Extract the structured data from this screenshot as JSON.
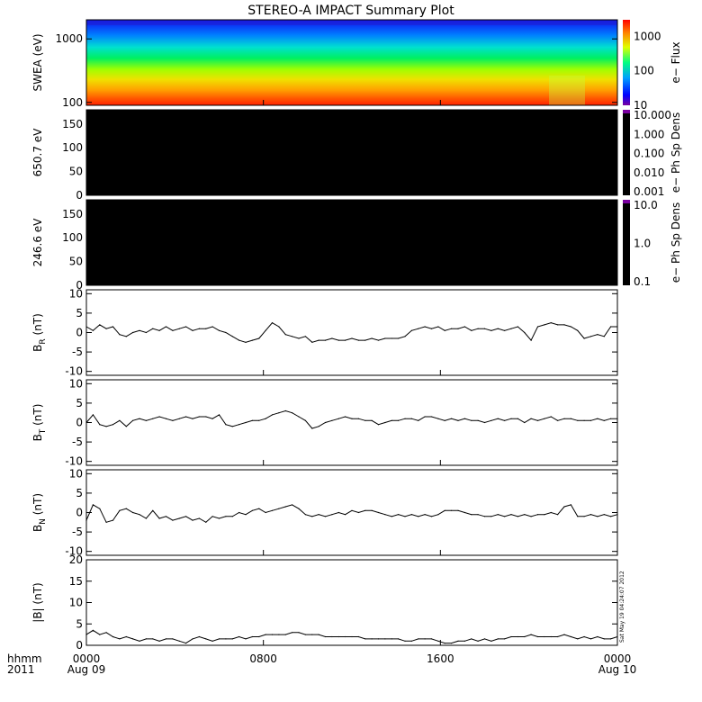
{
  "chart_data": {
    "title": "STEREO-A IMPACT Summary Plot",
    "x_axis": {
      "row1_label": "hhmm",
      "row2_label": "2011",
      "ticks": [
        {
          "time": "0000",
          "date": "Aug 09",
          "hour": 0
        },
        {
          "time": "0800",
          "date": "",
          "hour": 8
        },
        {
          "time": "1600",
          "date": "",
          "hour": 16
        },
        {
          "time": "0000",
          "date": "Aug 10",
          "hour": 24
        }
      ],
      "range_hours": [
        0,
        24
      ]
    },
    "panels": [
      {
        "id": "swea",
        "type": "heatmap",
        "ylabel": "SWEA (eV)",
        "yscale": "log",
        "ylim": [
          90,
          2000
        ],
        "yticks": [
          "100",
          "1000"
        ],
        "colorbar": {
          "label": "e− Flux",
          "scale": "log",
          "ticks": [
            "10",
            "100",
            "1000"
          ],
          "range": [
            10,
            3000
          ]
        }
      },
      {
        "id": "pad650",
        "type": "heatmap",
        "ylabel": "650.7 eV",
        "ylim": [
          0,
          180
        ],
        "yticks": [
          "0",
          "50",
          "100",
          "150"
        ],
        "fill": "#000000",
        "colorbar": {
          "label": "e− Ph Sp Dens",
          "scale": "log",
          "ticks": [
            "10.000",
            "1.000",
            "0.100",
            "0.010",
            "0.001"
          ]
        }
      },
      {
        "id": "pad246",
        "type": "heatmap",
        "ylabel": "246.6 eV",
        "ylim": [
          0,
          180
        ],
        "yticks": [
          "0",
          "50",
          "100",
          "150"
        ],
        "fill": "#000000",
        "colorbar": {
          "label": "e− Ph Sp Dens",
          "scale": "log",
          "ticks": [
            "10.0",
            "1.0",
            "0.1"
          ]
        }
      },
      {
        "id": "br",
        "type": "line",
        "ylabel": "B",
        "ylabel_sub": "R",
        "ylabel_unit": " (nT)",
        "ylim": [
          -11,
          11
        ],
        "yticks": [
          "10",
          "5",
          "0",
          "-5",
          "-10"
        ],
        "x": [
          0,
          0.3,
          0.6,
          0.9,
          1.2,
          1.5,
          1.8,
          2.1,
          2.4,
          2.7,
          3.0,
          3.3,
          3.6,
          3.9,
          4.2,
          4.5,
          4.8,
          5.1,
          5.4,
          5.7,
          6.0,
          6.3,
          6.6,
          6.9,
          7.2,
          7.5,
          7.8,
          8.1,
          8.4,
          8.7,
          9.0,
          9.3,
          9.6,
          9.9,
          10.2,
          10.5,
          10.8,
          11.1,
          11.4,
          11.7,
          12.0,
          12.3,
          12.6,
          12.9,
          13.2,
          13.5,
          13.8,
          14.1,
          14.4,
          14.7,
          15.0,
          15.3,
          15.6,
          15.9,
          16.2,
          16.5,
          16.8,
          17.1,
          17.4,
          17.7,
          18.0,
          18.3,
          18.6,
          18.9,
          19.2,
          19.5,
          19.8,
          20.1,
          20.4,
          20.7,
          21.0,
          21.3,
          21.6,
          21.9,
          22.2,
          22.5,
          22.8,
          23.1,
          23.4,
          23.7,
          24.0
        ],
        "y": [
          1.5,
          0.5,
          2.0,
          1.0,
          1.5,
          -0.5,
          -1.0,
          0.0,
          0.5,
          0.0,
          1.0,
          0.5,
          1.5,
          0.5,
          1.0,
          1.5,
          0.5,
          1.0,
          1.0,
          1.5,
          0.5,
          0.0,
          -1.0,
          -2.0,
          -2.5,
          -2.0,
          -1.5,
          0.5,
          2.5,
          1.5,
          -0.5,
          -1.0,
          -1.5,
          -1.0,
          -2.5,
          -2.0,
          -2.0,
          -1.5,
          -2.0,
          -2.0,
          -1.5,
          -2.0,
          -2.0,
          -1.5,
          -2.0,
          -1.5,
          -1.5,
          -1.5,
          -1.0,
          0.5,
          1.0,
          1.5,
          1.0,
          1.5,
          0.5,
          1.0,
          1.0,
          1.5,
          0.5,
          1.0,
          1.0,
          0.5,
          1.0,
          0.5,
          1.0,
          1.5,
          0.0,
          -2.0,
          1.5,
          2.0,
          2.5,
          2.0,
          2.0,
          1.5,
          0.5,
          -1.5,
          -1.0,
          -0.5,
          -1.0,
          1.5,
          1.5
        ]
      },
      {
        "id": "bt",
        "type": "line",
        "ylabel": "B",
        "ylabel_sub": "T",
        "ylabel_unit": " (nT)",
        "ylim": [
          -11,
          11
        ],
        "yticks": [
          "10",
          "5",
          "0",
          "-5",
          "-10"
        ],
        "x": [
          0,
          0.3,
          0.6,
          0.9,
          1.2,
          1.5,
          1.8,
          2.1,
          2.4,
          2.7,
          3.0,
          3.3,
          3.6,
          3.9,
          4.2,
          4.5,
          4.8,
          5.1,
          5.4,
          5.7,
          6.0,
          6.3,
          6.6,
          6.9,
          7.2,
          7.5,
          7.8,
          8.1,
          8.4,
          8.7,
          9.0,
          9.3,
          9.6,
          9.9,
          10.2,
          10.5,
          10.8,
          11.1,
          11.4,
          11.7,
          12.0,
          12.3,
          12.6,
          12.9,
          13.2,
          13.5,
          13.8,
          14.1,
          14.4,
          14.7,
          15.0,
          15.3,
          15.6,
          15.9,
          16.2,
          16.5,
          16.8,
          17.1,
          17.4,
          17.7,
          18.0,
          18.3,
          18.6,
          18.9,
          19.2,
          19.5,
          19.8,
          20.1,
          20.4,
          20.7,
          21.0,
          21.3,
          21.6,
          21.9,
          22.2,
          22.5,
          22.8,
          23.1,
          23.4,
          23.7,
          24.0
        ],
        "y": [
          0.0,
          2.0,
          -0.5,
          -1.0,
          -0.5,
          0.5,
          -1.0,
          0.5,
          1.0,
          0.5,
          1.0,
          1.5,
          1.0,
          0.5,
          1.0,
          1.5,
          1.0,
          1.5,
          1.5,
          1.0,
          2.0,
          -0.5,
          -1.0,
          -0.5,
          0.0,
          0.5,
          0.5,
          1.0,
          2.0,
          2.5,
          3.0,
          2.5,
          1.5,
          0.5,
          -1.5,
          -1.0,
          0.0,
          0.5,
          1.0,
          1.5,
          1.0,
          1.0,
          0.5,
          0.5,
          -0.5,
          0.0,
          0.5,
          0.5,
          1.0,
          1.0,
          0.5,
          1.5,
          1.5,
          1.0,
          0.5,
          1.0,
          0.5,
          1.0,
          0.5,
          0.5,
          0.0,
          0.5,
          1.0,
          0.5,
          1.0,
          1.0,
          0.0,
          1.0,
          0.5,
          1.0,
          1.5,
          0.5,
          1.0,
          1.0,
          0.5,
          0.5,
          0.5,
          1.0,
          0.5,
          1.0,
          1.0
        ]
      },
      {
        "id": "bn",
        "type": "line",
        "ylabel": "B",
        "ylabel_sub": "N",
        "ylabel_unit": " (nT)",
        "ylim": [
          -11,
          11
        ],
        "yticks": [
          "10",
          "5",
          "0",
          "-5",
          "-10"
        ],
        "x": [
          0,
          0.3,
          0.6,
          0.9,
          1.2,
          1.5,
          1.8,
          2.1,
          2.4,
          2.7,
          3.0,
          3.3,
          3.6,
          3.9,
          4.2,
          4.5,
          4.8,
          5.1,
          5.4,
          5.7,
          6.0,
          6.3,
          6.6,
          6.9,
          7.2,
          7.5,
          7.8,
          8.1,
          8.4,
          8.7,
          9.0,
          9.3,
          9.6,
          9.9,
          10.2,
          10.5,
          10.8,
          11.1,
          11.4,
          11.7,
          12.0,
          12.3,
          12.6,
          12.9,
          13.2,
          13.5,
          13.8,
          14.1,
          14.4,
          14.7,
          15.0,
          15.3,
          15.6,
          15.9,
          16.2,
          16.5,
          16.8,
          17.1,
          17.4,
          17.7,
          18.0,
          18.3,
          18.6,
          18.9,
          19.2,
          19.5,
          19.8,
          20.1,
          20.4,
          20.7,
          21.0,
          21.3,
          21.6,
          21.9,
          22.2,
          22.5,
          22.8,
          23.1,
          23.4,
          23.7,
          24.0
        ],
        "y": [
          -2.0,
          2.0,
          1.0,
          -2.5,
          -2.0,
          0.5,
          1.0,
          0.0,
          -0.5,
          -1.5,
          0.5,
          -1.5,
          -1.0,
          -2.0,
          -1.5,
          -1.0,
          -2.0,
          -1.5,
          -2.5,
          -1.0,
          -1.5,
          -1.0,
          -1.0,
          0.0,
          -0.5,
          0.5,
          1.0,
          0.0,
          0.5,
          1.0,
          1.5,
          2.0,
          1.0,
          -0.5,
          -1.0,
          -0.5,
          -1.0,
          -0.5,
          0.0,
          -0.5,
          0.5,
          0.0,
          0.5,
          0.5,
          0.0,
          -0.5,
          -1.0,
          -0.5,
          -1.0,
          -0.5,
          -1.0,
          -0.5,
          -1.0,
          -0.5,
          0.5,
          0.5,
          0.5,
          0.0,
          -0.5,
          -0.5,
          -1.0,
          -1.0,
          -0.5,
          -1.0,
          -0.5,
          -1.0,
          -0.5,
          -1.0,
          -0.5,
          -0.5,
          0.0,
          -0.5,
          1.5,
          2.0,
          -1.0,
          -1.0,
          -0.5,
          -1.0,
          -0.5,
          -1.0,
          -0.5
        ]
      },
      {
        "id": "bmag",
        "type": "line",
        "ylabel": "|B| (nT)",
        "ylim": [
          0,
          20
        ],
        "yticks": [
          "20",
          "15",
          "10",
          "5",
          "0"
        ],
        "x": [
          0,
          0.3,
          0.6,
          0.9,
          1.2,
          1.5,
          1.8,
          2.1,
          2.4,
          2.7,
          3.0,
          3.3,
          3.6,
          3.9,
          4.2,
          4.5,
          4.8,
          5.1,
          5.4,
          5.7,
          6.0,
          6.3,
          6.6,
          6.9,
          7.2,
          7.5,
          7.8,
          8.1,
          8.4,
          8.7,
          9.0,
          9.3,
          9.6,
          9.9,
          10.2,
          10.5,
          10.8,
          11.1,
          11.4,
          11.7,
          12.0,
          12.3,
          12.6,
          12.9,
          13.2,
          13.5,
          13.8,
          14.1,
          14.4,
          14.7,
          15.0,
          15.3,
          15.6,
          15.9,
          16.2,
          16.5,
          16.8,
          17.1,
          17.4,
          17.7,
          18.0,
          18.3,
          18.6,
          18.9,
          19.2,
          19.5,
          19.8,
          20.1,
          20.4,
          20.7,
          21.0,
          21.3,
          21.6,
          21.9,
          22.2,
          22.5,
          22.8,
          23.1,
          23.4,
          23.7,
          24.0
        ],
        "y": [
          2.5,
          3.5,
          2.5,
          3.0,
          2.0,
          1.5,
          2.0,
          1.5,
          1.0,
          1.5,
          1.5,
          1.0,
          1.5,
          1.5,
          1.0,
          0.5,
          1.5,
          2.0,
          1.5,
          1.0,
          1.5,
          1.5,
          1.5,
          2.0,
          1.5,
          2.0,
          2.0,
          2.5,
          2.5,
          2.5,
          2.5,
          3.0,
          3.0,
          2.5,
          2.5,
          2.5,
          2.0,
          2.0,
          2.0,
          2.0,
          2.0,
          2.0,
          1.5,
          1.5,
          1.5,
          1.5,
          1.5,
          1.5,
          1.0,
          1.0,
          1.5,
          1.5,
          1.5,
          1.0,
          0.5,
          0.5,
          1.0,
          1.0,
          1.5,
          1.0,
          1.5,
          1.0,
          1.5,
          1.5,
          2.0,
          2.0,
          2.0,
          2.5,
          2.0,
          2.0,
          2.0,
          2.0,
          2.5,
          2.0,
          1.5,
          2.0,
          1.5,
          2.0,
          1.5,
          1.5,
          2.0
        ]
      }
    ],
    "stamp": "Sat May 19 04:24:07 2012"
  }
}
